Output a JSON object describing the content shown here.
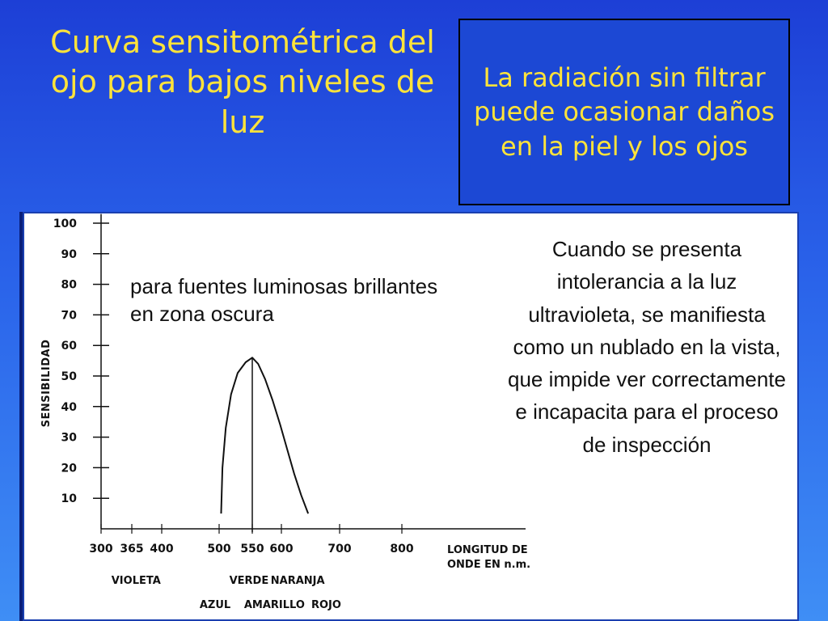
{
  "slide": {
    "title": "Curva sensitométrica del ojo para bajos niveles de luz",
    "note_box": "La radiación  sin filtrar puede ocasionar daños en la piel y los ojos",
    "inset_text": "para fuentes luminosas brillantes en zona oscura",
    "side_text": "Cuando se presenta intolerancia a la luz ultravioleta, se manifiesta como un nublado en la vista, que impide ver correctamente e incapacita para el proceso de inspección",
    "colors": {
      "title_yellow": "#ffe33a",
      "box_blue": "#1c48d4",
      "background_blue": "#2a63ea"
    }
  },
  "chart_data": {
    "type": "line",
    "xlabel": "LONGITUD DE ONDE EN n.m.",
    "xlabel_lines": [
      "LONGITUD DE",
      "ONDE EN n.m."
    ],
    "ylabel": "SENSIBILIDAD",
    "ylim": [
      0,
      100
    ],
    "y_ticks": [
      "10",
      "20",
      "30",
      "40",
      "50",
      "60",
      "70",
      "80",
      "90",
      "100"
    ],
    "x_ticks": [
      "300",
      "365",
      "400",
      "500",
      "550",
      "600",
      "700",
      "800"
    ],
    "x_tick_values": [
      300,
      365,
      400,
      500,
      550,
      600,
      700,
      800
    ],
    "xlim": [
      300,
      1000
    ],
    "peak_line_x": 550,
    "series": [
      {
        "x": [
          503,
          505,
          510,
          518,
          528,
          540,
          550,
          560,
          572,
          585,
          598,
          610,
          622,
          634,
          646
        ],
        "y": [
          5,
          20,
          33,
          44,
          51,
          54.5,
          56,
          54,
          49,
          42,
          34,
          26,
          18,
          11,
          5
        ]
      }
    ],
    "color_bands": [
      {
        "label": "VIOLETA",
        "row": 1,
        "x": 370
      },
      {
        "label": "VERDE",
        "row": 1,
        "x": 545
      },
      {
        "label": "NARANJA",
        "row": 1,
        "x": 628
      },
      {
        "label": "AZUL",
        "row": 2,
        "x": 493
      },
      {
        "label": "AMARILLO",
        "row": 2,
        "x": 588
      },
      {
        "label": "ROJO",
        "row": 2,
        "x": 677
      }
    ],
    "grid": false
  }
}
